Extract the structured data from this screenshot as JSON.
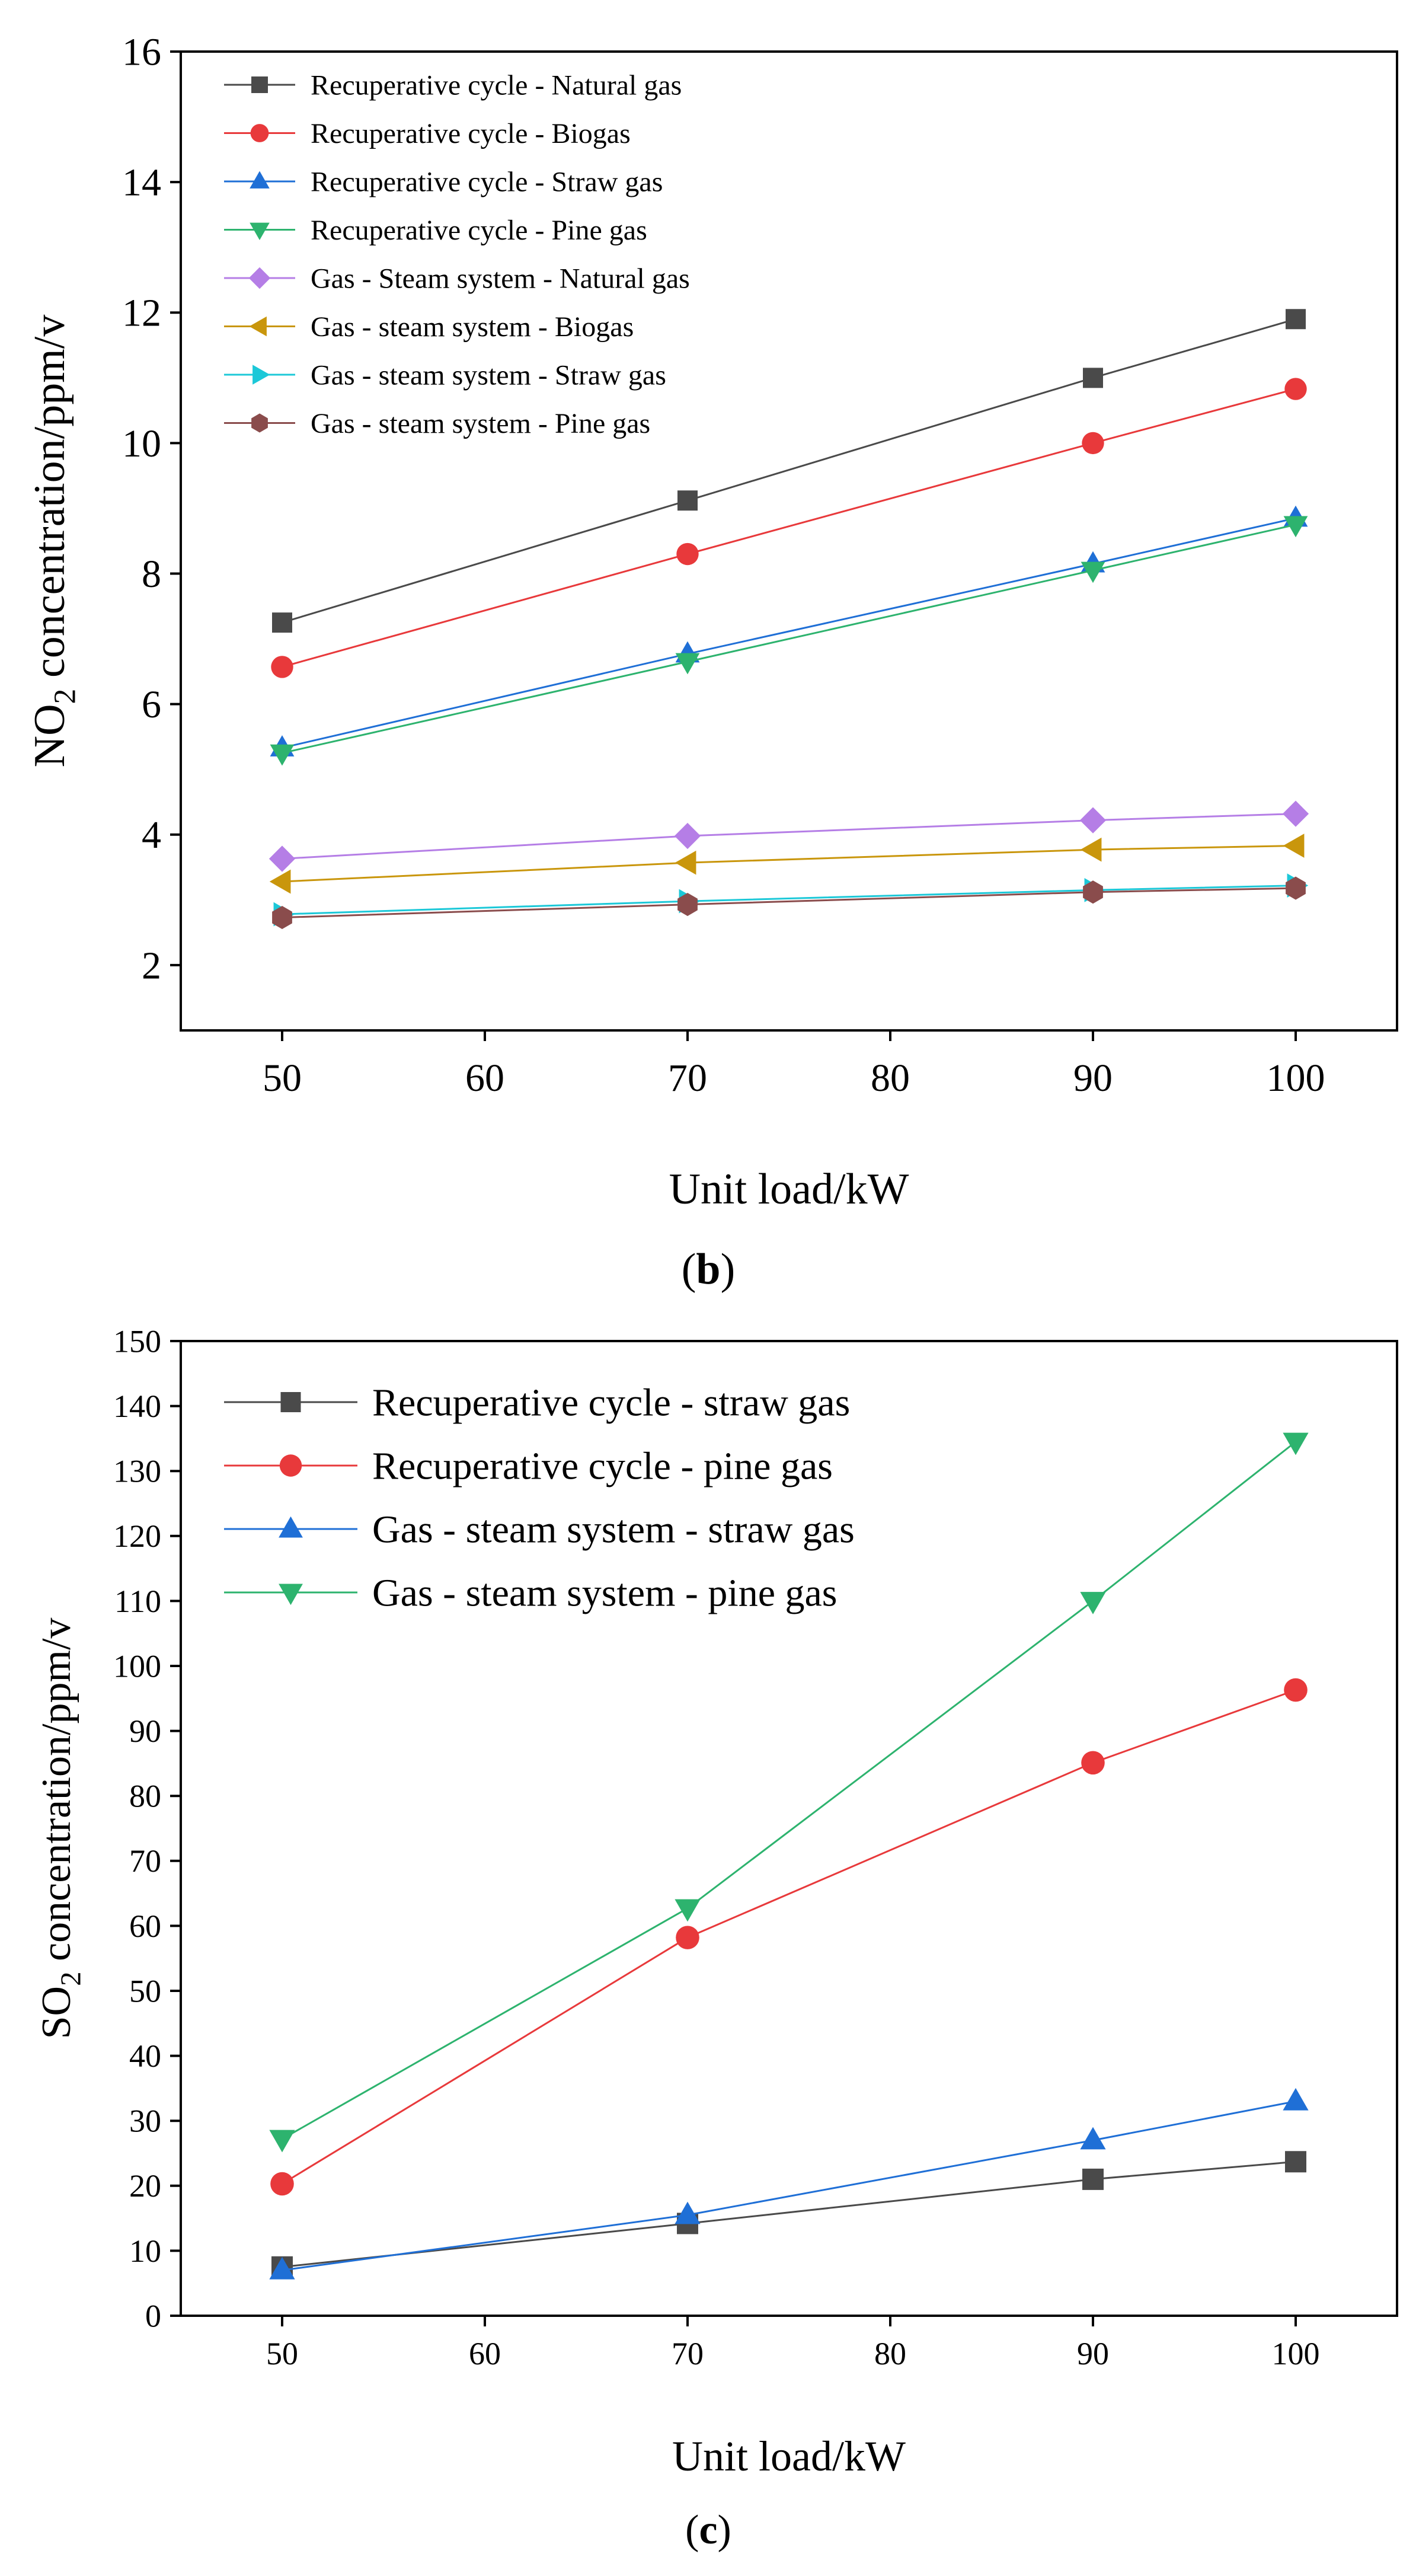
{
  "chart_data": [
    {
      "type": "line",
      "panel_label": "(b)",
      "title": "",
      "xlabel": "Unit load/kW",
      "ylabel_main": "NO",
      "ylabel_sub": "2",
      "ylabel_rest": " concentration/ppm/v",
      "xlim": [
        45,
        105
      ],
      "ylim": [
        1,
        16
      ],
      "xticks": [
        50,
        60,
        70,
        80,
        90,
        100
      ],
      "yticks": [
        2,
        4,
        6,
        8,
        10,
        12,
        14,
        16
      ],
      "legend_position": "top-left",
      "x": [
        50,
        70,
        90,
        100
      ],
      "series": [
        {
          "name": "Recuperative  cycle - Natural gas",
          "marker": "square",
          "color": "#4a4a4a",
          "values": [
            7.25,
            9.12,
            11.0,
            11.9
          ]
        },
        {
          "name": "Recuperative  cycle - Biogas",
          "marker": "circle",
          "color": "#e8393b",
          "values": [
            6.57,
            8.3,
            10.0,
            10.83
          ]
        },
        {
          "name": "Recuperative  cycle - Straw gas",
          "marker": "triangle-up",
          "color": "#1f6fd6",
          "values": [
            5.33,
            6.77,
            8.15,
            8.85
          ]
        },
        {
          "name": "Recuperative  cycle - Pine gas",
          "marker": "triangle-down",
          "color": "#2db36e",
          "values": [
            5.25,
            6.65,
            8.05,
            8.75
          ]
        },
        {
          "name": "Gas - Steam system - Natural gas",
          "marker": "diamond",
          "color": "#b57ee6",
          "values": [
            3.63,
            3.98,
            4.22,
            4.32
          ]
        },
        {
          "name": "Gas - steam system - Biogas",
          "marker": "triangle-left",
          "color": "#c9960c",
          "values": [
            3.28,
            3.57,
            3.77,
            3.83
          ]
        },
        {
          "name": "Gas - steam system - Straw gas",
          "marker": "triangle-right",
          "color": "#1cc8d8",
          "values": [
            2.78,
            2.98,
            3.15,
            3.22
          ]
        },
        {
          "name": "Gas - steam system - Pine gas",
          "marker": "hexagon",
          "color": "#8a4c4c",
          "values": [
            2.73,
            2.93,
            3.12,
            3.18
          ]
        }
      ]
    },
    {
      "type": "line",
      "panel_label": "(c)",
      "title": "",
      "xlabel": "Unit load/kW",
      "ylabel_main": "SO",
      "ylabel_sub": "2",
      "ylabel_rest": " concentration/ppm/v",
      "xlim": [
        45,
        105
      ],
      "ylim": [
        0,
        150
      ],
      "xticks": [
        50,
        60,
        70,
        80,
        90,
        100
      ],
      "yticks": [
        0,
        10,
        20,
        30,
        40,
        50,
        60,
        70,
        80,
        90,
        100,
        110,
        120,
        130,
        140,
        150
      ],
      "legend_position": "top-left",
      "x": [
        50,
        70,
        90,
        100
      ],
      "series": [
        {
          "name": "Recuperative cycle - straw gas",
          "marker": "square",
          "color": "#4a4a4a",
          "values": [
            7.5,
            14.2,
            21.0,
            23.7
          ]
        },
        {
          "name": "Recuperative cycle - pine gas",
          "marker": "circle",
          "color": "#e8393b",
          "values": [
            20.3,
            58.2,
            85.1,
            96.3
          ]
        },
        {
          "name": "Gas - steam system - straw gas",
          "marker": "triangle-up",
          "color": "#1f6fd6",
          "values": [
            7.0,
            15.5,
            27.0,
            33.0
          ]
        },
        {
          "name": "Gas - steam system - pine gas",
          "marker": "triangle-down",
          "color": "#2db36e",
          "values": [
            27.2,
            62.7,
            110.0,
            134.5
          ]
        }
      ]
    }
  ]
}
